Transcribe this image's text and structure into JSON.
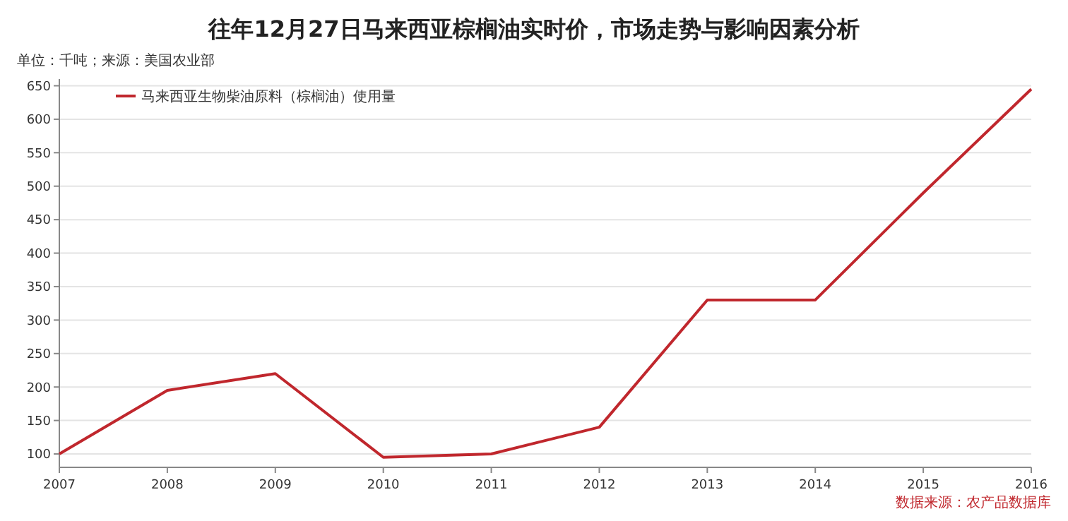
{
  "chart_data": {
    "type": "line",
    "title": "往年12月27日马来西亚棕榈油实时价，市场走势与影响因素分析",
    "subtitle": "单位：千吨；来源：美国农业部",
    "x": [
      2007,
      2008,
      2009,
      2010,
      2011,
      2012,
      2013,
      2014,
      2015,
      2016
    ],
    "series": [
      {
        "name": "马来西亚生物柴油原料（棕榈油）使用量",
        "color": "#c0272d",
        "values": [
          100,
          195,
          220,
          95,
          100,
          140,
          330,
          330,
          490,
          645
        ]
      }
    ],
    "xlim": [
      2007,
      2016
    ],
    "xticks": [
      2007,
      2008,
      2009,
      2010,
      2011,
      2012,
      2013,
      2014,
      2015,
      2016
    ],
    "ylim": [
      80,
      660
    ],
    "yticks": [
      100,
      150,
      200,
      250,
      300,
      350,
      400,
      450,
      500,
      550,
      600,
      650
    ],
    "grid": "y",
    "legend": "top left",
    "marker": "none",
    "line_style": "solid",
    "annotations": [
      "数据来源：农产品数据库"
    ]
  }
}
